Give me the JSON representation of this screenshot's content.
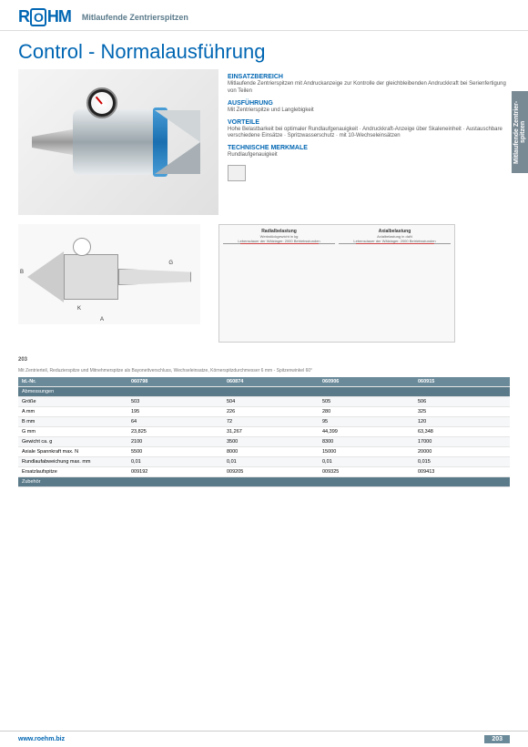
{
  "header": {
    "logo_main": "R",
    "logo_mid": "O",
    "logo_end": "HM",
    "subtitle": "Mitlaufende Zentrierspitzen"
  },
  "title": "Control - Normalausführung",
  "sidetab": "Mitlaufende Zentrier-spitzen",
  "info": {
    "h1": "EINSATZBEREICH",
    "p1": "Mitlaufende Zentrierspitzen mit Andruckanzeige zur Kontrolle der gleichbleibenden Andruckkraft bei Serienfertigung von Teilen",
    "h2": "AUSFÜHRUNG",
    "p2": "Mit Zentrierspitze und Langlebigkeit",
    "h3": "VORTEILE",
    "p3": "Hohe Belastbarkeit bei optimaler Rundlaufgenauigkeit · Andruckkraft-Anzeige über Skaleneinheit · Austauschbare verschiedene Einsätze · Spritzwasserschutz · mit 10-Wechseleinsätzen",
    "h4": "TECHNISCHE MERKMALE",
    "p4": "Rundlaufgenauigkeit"
  },
  "chart": {
    "t1": "Radialbelastung",
    "s1": "Werkstückgewicht in kg",
    "s2": "Lebensdauer der Wälzlager: 2000 Betriebsstunden",
    "t2": "Axialbelastung",
    "s3": "Axialbelastung in daN",
    "colors": [
      "#c44",
      "#888",
      "#c44"
    ]
  },
  "intro": {
    "line1": "203",
    "line2": "Mit Zentrierteil, Reduzierspitze und Mitnehmerspitze als Bayonettverschluss, Wechseleinsatze, Körnerspitzdurchmesser 6 mm - Spitzenwinkel 60°"
  },
  "table": {
    "headers": [
      "Id.-Nr.",
      "060798",
      "060874",
      "060906",
      "060915"
    ],
    "rowA": "Abmessungen",
    "rows": [
      [
        "Größe",
        "503",
        "504",
        "505",
        "506"
      ],
      [
        "A mm",
        "195",
        "226",
        "280",
        "325"
      ],
      [
        "B mm",
        "64",
        "72",
        "95",
        "120"
      ],
      [
        "G mm",
        "23,825",
        "31,267",
        "44,399",
        "63,348"
      ],
      [
        "Gewicht ca. g",
        "2100",
        "3500",
        "8300",
        "17000"
      ],
      [
        "Axiale Spannkraft max. N",
        "5500",
        "8000",
        "15000",
        "20000"
      ],
      [
        "Rundlaufabweichung max. mm",
        "0,01",
        "0,01",
        "0,01",
        "0,015"
      ],
      [
        "Ersatzlaufspitze",
        "009192",
        "009205",
        "009325",
        "009413"
      ]
    ],
    "rowZ": "Zubehör"
  },
  "dims": {
    "A": "A",
    "B": "B",
    "K": "K",
    "G": "G"
  },
  "footer": {
    "url": "www.roehm.biz",
    "page": "203"
  }
}
